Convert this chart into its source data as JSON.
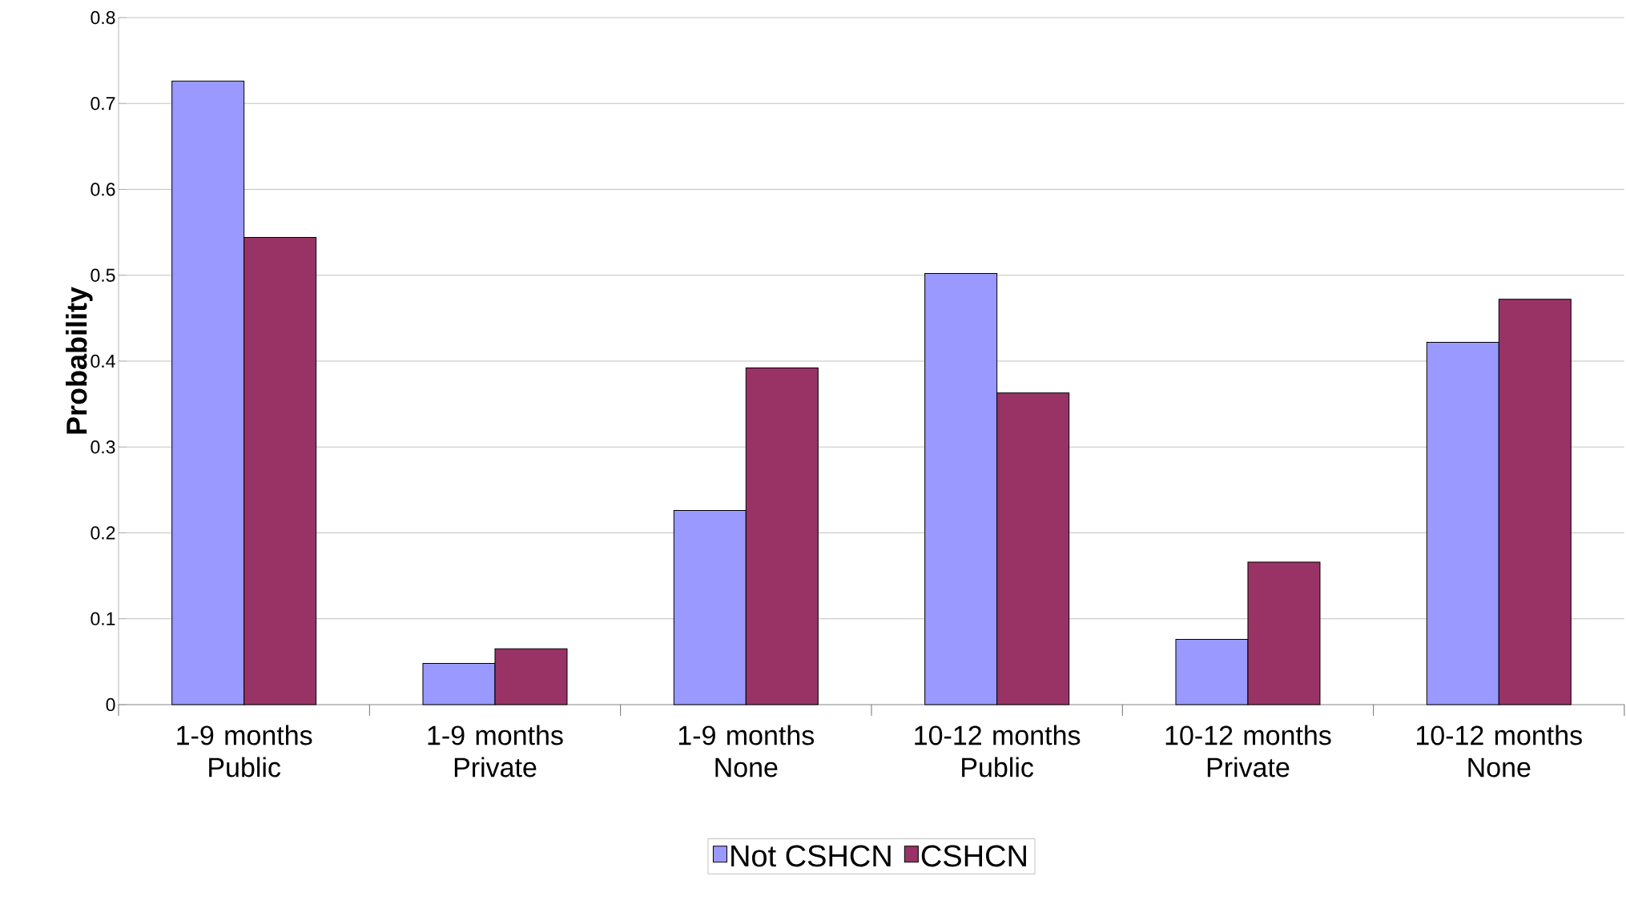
{
  "chart_data": {
    "type": "bar",
    "ylabel": "Probability",
    "categories": [
      "1-9 months Public",
      "1-9 months Private",
      "1-9 months None",
      "10-12 months Public",
      "10-12 months Private",
      "10-12 months None"
    ],
    "series": [
      {
        "name": "Not CSHCN",
        "color": "#9999ff",
        "values": [
          0.726,
          0.048,
          0.226,
          0.502,
          0.076,
          0.422
        ]
      },
      {
        "name": "CSHCN",
        "color": "#993366",
        "values": [
          0.544,
          0.065,
          0.392,
          0.363,
          0.166,
          0.472
        ]
      }
    ],
    "ylim": [
      0,
      0.8
    ],
    "yticks": [
      0,
      0.1,
      0.2,
      0.3,
      0.4,
      0.5,
      0.6,
      0.7,
      0.8
    ],
    "grid": "y",
    "legend": "bottom"
  }
}
